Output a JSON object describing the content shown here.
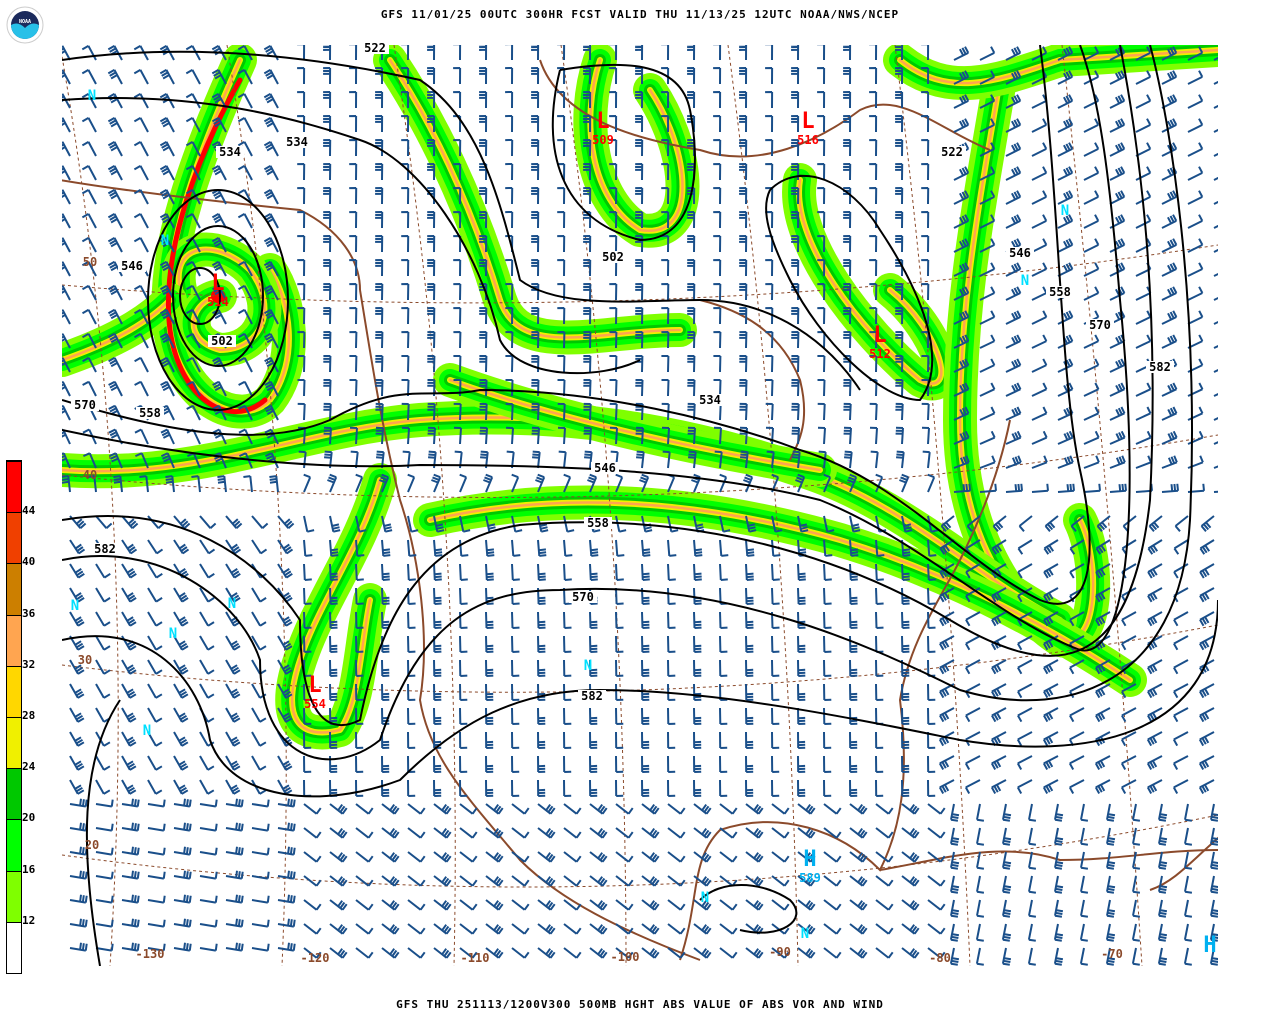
{
  "header": {
    "title": "GFS 11/01/25 00UTC 300HR FCST VALID THU 11/13/25 12UTC NOAA/NWS/NCEP"
  },
  "footer": {
    "caption": "GFS THU 251113/1200V300 500MB HGHT ABS VALUE OF ABS VOR AND WIND"
  },
  "logo": {
    "text": "NOAA"
  },
  "colorbar": {
    "labels": [
      "12",
      "16",
      "20",
      "24",
      "28",
      "32",
      "36",
      "40",
      "44"
    ],
    "colors": [
      "#ffffff",
      "#7fff00",
      "#00ff00",
      "#00c800",
      "#f0f000",
      "#ffd700",
      "#ffa550",
      "#cc7f00",
      "#f04000",
      "#ff0000"
    ]
  },
  "colors": {
    "contour": "#000000",
    "coast": "#8b4a2b",
    "barb": "#1a4f8a",
    "low": "#ff0000",
    "high": "#00b0f0"
  },
  "contour_labels": [
    "522",
    "534",
    "534",
    "546",
    "502",
    "502",
    "534",
    "522",
    "546",
    "558",
    "570",
    "582",
    "570",
    "558",
    "582",
    "546",
    "558",
    "570",
    "582"
  ],
  "lat_labels": [
    "50",
    "40",
    "30",
    "20"
  ],
  "lon_labels": [
    "-130",
    "-120",
    "-110",
    "-100",
    "-90",
    "-80",
    "-70"
  ],
  "lows": [
    {
      "symbol": "L",
      "value": "509"
    },
    {
      "symbol": "L",
      "value": "516"
    },
    {
      "symbol": "L",
      "value": "512"
    },
    {
      "symbol": "L",
      "value": "554"
    },
    {
      "symbol": "L",
      "value": "514"
    }
  ],
  "highs": [
    {
      "symbol": "H",
      "value": "589"
    },
    {
      "symbol": "H",
      "value": ""
    }
  ],
  "max_markers": {
    "symbol": "N"
  }
}
